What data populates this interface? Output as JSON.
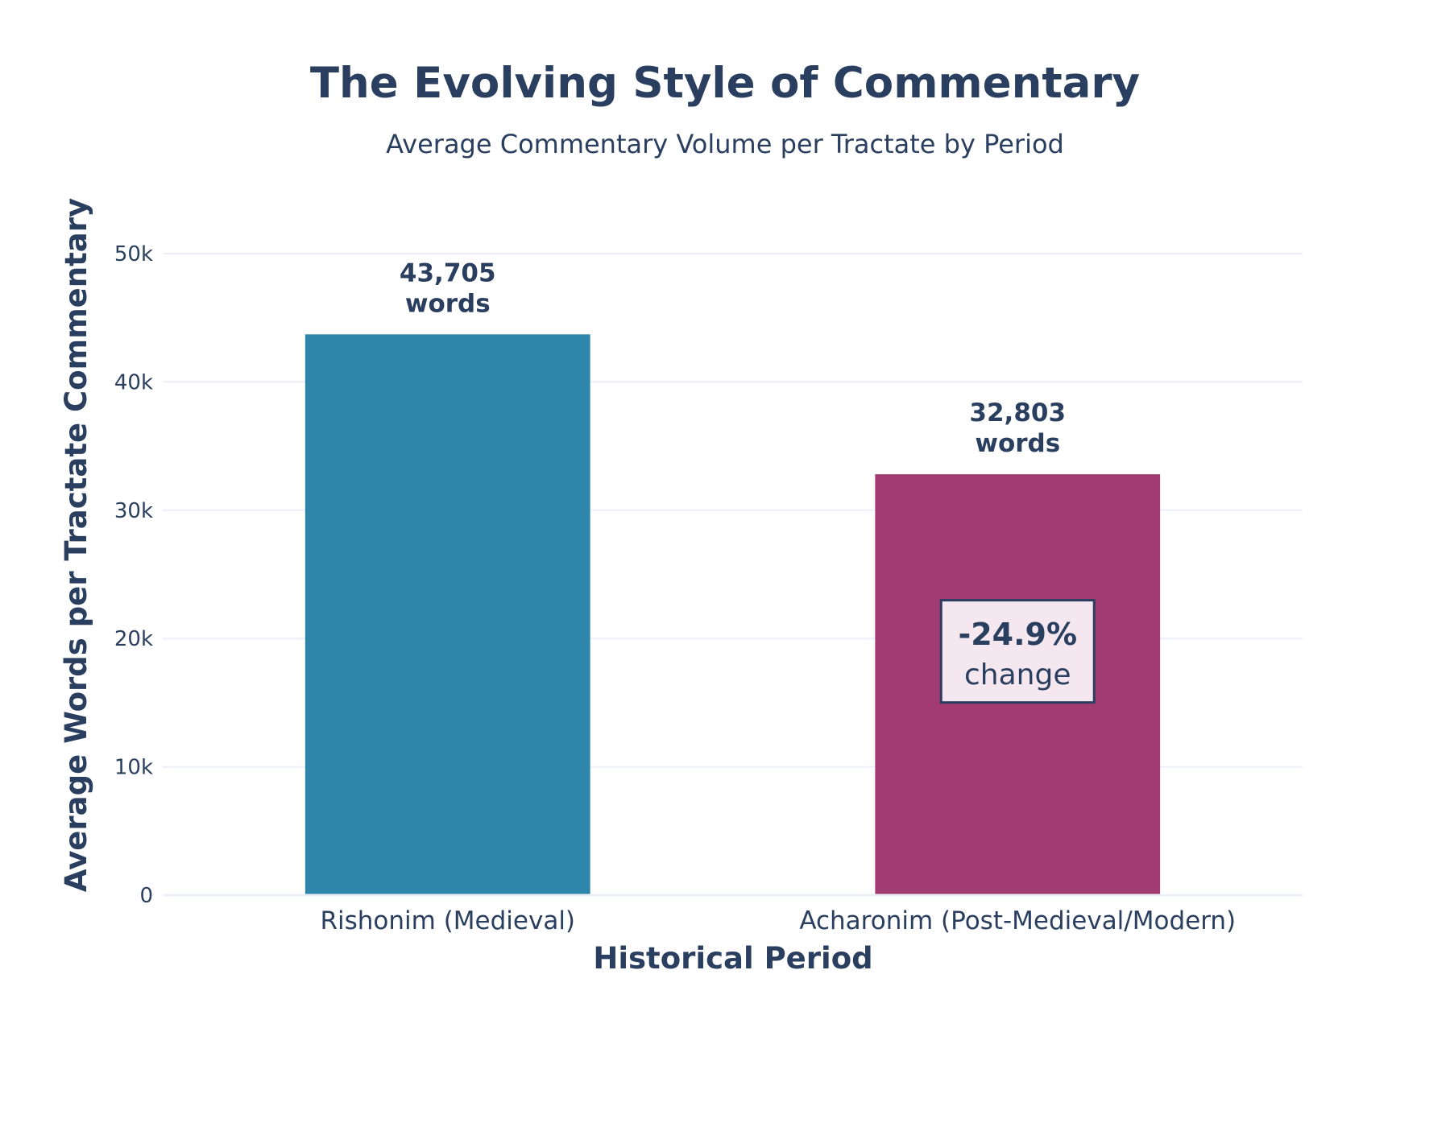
{
  "chart_data": {
    "type": "bar",
    "title": "The Evolving Style of Commentary",
    "subtitle": "Average Commentary Volume per Tractate by Period",
    "xlabel": "Historical Period",
    "ylabel": "Average Words per Tractate Commentary",
    "categories": [
      "Rishonim (Medieval)",
      "Acharonim (Post-Medieval/Modern)"
    ],
    "values": [
      43705,
      32803
    ],
    "data_labels": [
      [
        "43,705",
        "words"
      ],
      [
        "32,803",
        "words"
      ]
    ],
    "colors": [
      "#2e86ab",
      "#a23b72"
    ],
    "ylim": [
      0,
      50000
    ],
    "yticks": [
      0,
      10000,
      20000,
      30000,
      40000,
      50000
    ],
    "ytick_labels": [
      "0",
      "10k",
      "20k",
      "30k",
      "40k",
      "50k"
    ],
    "grid": true,
    "legend": false,
    "annotation": {
      "value_line": "-24.9%",
      "text_line": "change",
      "anchor_category": 1,
      "anchor_value": 19000,
      "background": "#f5e7f0",
      "border": "#2a3f5f"
    }
  }
}
